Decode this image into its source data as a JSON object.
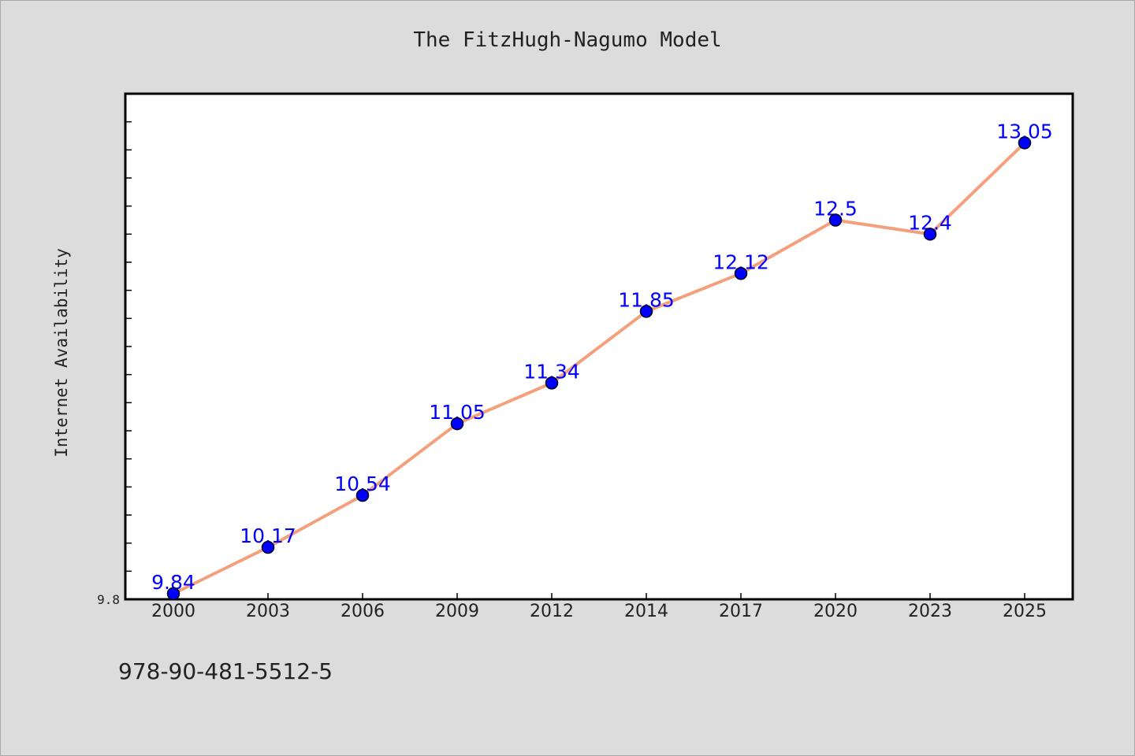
{
  "chart_data": {
    "type": "line",
    "title": "The FitzHugh-Nagumo Model",
    "xlabel": "",
    "ylabel": "Internet Availability",
    "categories": [
      "2000",
      "2003",
      "2006",
      "2009",
      "2012",
      "2014",
      "2017",
      "2020",
      "2023",
      "2025"
    ],
    "values": [
      9.84,
      10.17,
      10.54,
      11.05,
      11.34,
      11.85,
      12.12,
      12.5,
      12.4,
      13.05
    ],
    "data_labels": [
      "9.84",
      "10.17",
      "10.54",
      "11.05",
      "11.34",
      "11.85",
      "12.12",
      "12.5",
      "12.4",
      "13.05"
    ],
    "y_tick_labels": [
      "9.8"
    ],
    "ylim": [
      9.8,
      13.4
    ],
    "grid": false,
    "line_color": "#f4a07c",
    "marker_color": "#0000ff",
    "label_color": "#0000ff"
  },
  "footer": {
    "isbn": "978-90-481-5512-5"
  }
}
